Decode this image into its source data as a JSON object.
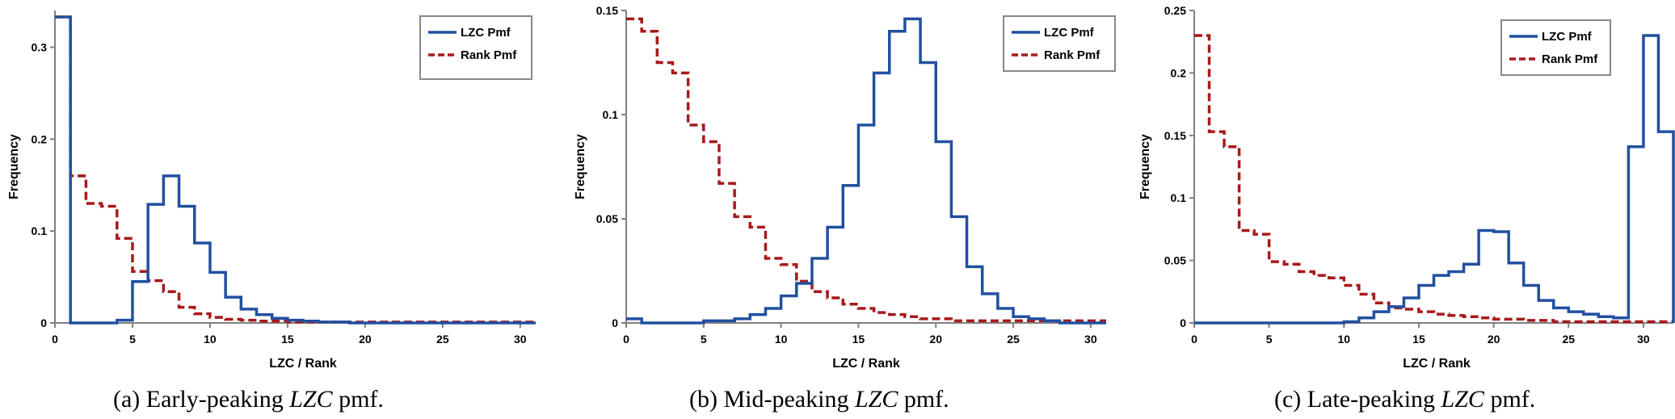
{
  "colors": {
    "lzc": "#2150a0",
    "rank": "#a8191b",
    "axis": "#808080"
  },
  "captions": [
    {
      "prefix": "(a)  Early-peaking ",
      "em": "LZC",
      "suffix": " pmf."
    },
    {
      "prefix": "(b)  Mid-peaking ",
      "em": "LZC",
      "suffix": " pmf."
    },
    {
      "prefix": "(c)  Late-peaking ",
      "em": "LZC",
      "suffix": " pmf."
    }
  ],
  "chart_data": [
    {
      "type": "line",
      "step": true,
      "xlabel": "LZC / Rank",
      "ylabel": "Frequency",
      "xlim": [
        0,
        31
      ],
      "ylim": [
        0,
        0.34
      ],
      "xticks": [
        0,
        5,
        10,
        15,
        20,
        25,
        30
      ],
      "yticks": [
        0,
        0.1,
        0.2,
        0.3
      ],
      "ytick_labels": [
        "0",
        "0.1",
        "0.2",
        "0.3"
      ],
      "legend_position": "top-right",
      "x": [
        0,
        1,
        2,
        3,
        4,
        5,
        6,
        7,
        8,
        9,
        10,
        11,
        12,
        13,
        14,
        15,
        16,
        17,
        18,
        19,
        20,
        21,
        22,
        23,
        24,
        25,
        26,
        27,
        28,
        29,
        30,
        31
      ],
      "series": [
        {
          "name": "LZC Pmf",
          "values": [
            0.333,
            0,
            0,
            0,
            0.003,
            0.045,
            0.129,
            0.16,
            0.127,
            0.087,
            0.055,
            0.028,
            0.015,
            0.009,
            0.005,
            0.003,
            0.002,
            0.001,
            0.001,
            0,
            0,
            0,
            0,
            0,
            0,
            0,
            0,
            0,
            0,
            0,
            0,
            0
          ]
        },
        {
          "name": "Rank Pmf",
          "values": [
            0.333,
            0.16,
            0.13,
            0.127,
            0.092,
            0.056,
            0.046,
            0.034,
            0.017,
            0.01,
            0.006,
            0.004,
            0.003,
            0.002,
            0.002,
            0.001,
            0.001,
            0.001,
            0.001,
            0.001,
            0.001,
            0.001,
            0.001,
            0.001,
            0.001,
            0.001,
            0.001,
            0.001,
            0.001,
            0.001,
            0.001,
            0.001
          ]
        }
      ]
    },
    {
      "type": "line",
      "step": true,
      "xlabel": "LZC / Rank",
      "ylabel": "Frequency",
      "xlim": [
        0,
        31
      ],
      "ylim": [
        0,
        0.15
      ],
      "xticks": [
        0,
        5,
        10,
        15,
        20,
        25,
        30
      ],
      "yticks": [
        0,
        0.05,
        0.1,
        0.15
      ],
      "ytick_labels": [
        "0",
        "0.05",
        "0.1",
        "0.15"
      ],
      "legend_position": "top-right",
      "x": [
        0,
        1,
        2,
        3,
        4,
        5,
        6,
        7,
        8,
        9,
        10,
        11,
        12,
        13,
        14,
        15,
        16,
        17,
        18,
        19,
        20,
        21,
        22,
        23,
        24,
        25,
        26,
        27,
        28,
        29,
        30,
        31
      ],
      "series": [
        {
          "name": "LZC Pmf",
          "values": [
            0.002,
            0,
            0,
            0,
            0,
            0.001,
            0.001,
            0.002,
            0.004,
            0.007,
            0.013,
            0.019,
            0.031,
            0.046,
            0.066,
            0.095,
            0.12,
            0.14,
            0.146,
            0.125,
            0.087,
            0.051,
            0.027,
            0.014,
            0.007,
            0.003,
            0.002,
            0.001,
            0,
            0,
            0,
            0
          ]
        },
        {
          "name": "Rank Pmf",
          "values": [
            0.146,
            0.14,
            0.125,
            0.12,
            0.095,
            0.087,
            0.067,
            0.051,
            0.046,
            0.031,
            0.028,
            0.02,
            0.015,
            0.012,
            0.009,
            0.007,
            0.005,
            0.004,
            0.003,
            0.002,
            0.002,
            0.001,
            0.001,
            0.001,
            0.001,
            0.001,
            0.001,
            0.001,
            0.001,
            0.001,
            0.001,
            0.001
          ]
        }
      ]
    },
    {
      "type": "line",
      "step": true,
      "xlabel": "LZC / Rank",
      "ylabel": "Frequency",
      "xlim": [
        0,
        32
      ],
      "ylim": [
        0,
        0.25
      ],
      "xticks": [
        0,
        5,
        10,
        15,
        20,
        25,
        30
      ],
      "yticks": [
        0,
        0.05,
        0.1,
        0.15,
        0.2,
        0.25
      ],
      "ytick_labels": [
        "0",
        "0.05",
        "0.1",
        "0.15",
        "0.2",
        "0.25"
      ],
      "legend_position": "top-right",
      "x": [
        0,
        1,
        2,
        3,
        4,
        5,
        6,
        7,
        8,
        9,
        10,
        11,
        12,
        13,
        14,
        15,
        16,
        17,
        18,
        19,
        20,
        21,
        22,
        23,
        24,
        25,
        26,
        27,
        28,
        29,
        30,
        31,
        32
      ],
      "series": [
        {
          "name": "LZC Pmf",
          "values": [
            0,
            0,
            0,
            0,
            0,
            0,
            0,
            0,
            0,
            0,
            0.001,
            0.004,
            0.009,
            0.013,
            0.02,
            0.03,
            0.038,
            0.041,
            0.047,
            0.074,
            0.073,
            0.048,
            0.03,
            0.018,
            0.012,
            0.009,
            0.007,
            0.005,
            0.004,
            0.141,
            0.23,
            0.153,
            0
          ]
        },
        {
          "name": "Rank Pmf",
          "values": [
            0.23,
            0.153,
            0.141,
            0.074,
            0.071,
            0.049,
            0.047,
            0.041,
            0.038,
            0.036,
            0.03,
            0.023,
            0.016,
            0.012,
            0.011,
            0.009,
            0.007,
            0.006,
            0.005,
            0.004,
            0.003,
            0.003,
            0.002,
            0.002,
            0.001,
            0.001,
            0.001,
            0.001,
            0.001,
            0.001,
            0.001,
            0.001,
            0.001
          ]
        }
      ]
    }
  ]
}
